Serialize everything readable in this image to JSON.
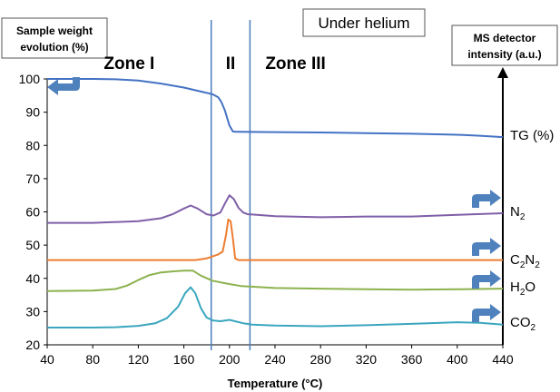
{
  "chart_data": {
    "type": "line",
    "title": "Under helium",
    "xlabel": "Temperature (°C)",
    "ylabel_left": "Sample weight evolution (%)",
    "ylabel_right": "MS detector intensity (a.u.)",
    "xlim": [
      40,
      440
    ],
    "ylim": [
      20,
      100
    ],
    "x_ticks": [
      "40",
      "80",
      "120",
      "160",
      "200",
      "240",
      "280",
      "320",
      "360",
      "400",
      "440"
    ],
    "y_ticks": [
      "20",
      "30",
      "40",
      "50",
      "60",
      "70",
      "80",
      "90",
      "100"
    ],
    "grid": false,
    "zones": [
      {
        "label": "Zone I",
        "x_center": 112
      },
      {
        "label": "II",
        "x_center": 201
      },
      {
        "label": "Zone III",
        "x_center": 258
      }
    ],
    "zone_boundaries": [
      184,
      218
    ],
    "series": [
      {
        "name": "TG (%)",
        "color": "#4472C4",
        "x": [
          40,
          80,
          100,
          120,
          140,
          160,
          175,
          185,
          190,
          193,
          196,
          200,
          203,
          206,
          210,
          240,
          280,
          320,
          360,
          400,
          420,
          440
        ],
        "y": [
          100,
          100,
          99.9,
          99.5,
          98.6,
          97.4,
          96.2,
          95.4,
          94.5,
          93,
          90.5,
          86,
          84.2,
          84.1,
          84.1,
          84,
          83.9,
          83.7,
          83.5,
          83.2,
          82.9,
          82.5
        ]
      },
      {
        "name": "N2",
        "color": "#7F5FA8",
        "x": [
          40,
          80,
          120,
          140,
          150,
          160,
          166,
          172,
          180,
          186,
          192,
          196,
          200,
          204,
          208,
          212,
          216,
          220,
          240,
          280,
          320,
          360,
          400,
          440
        ],
        "y": [
          56.7,
          56.7,
          57.2,
          58.1,
          59.3,
          61,
          61.9,
          61,
          59.3,
          58.9,
          59.8,
          62.5,
          65,
          63.8,
          61.2,
          59.8,
          59.3,
          59.2,
          58.7,
          58.4,
          58.6,
          58.6,
          59.1,
          59.6
        ]
      },
      {
        "name": "C2N2",
        "color": "#ED7D31",
        "x": [
          40,
          120,
          170,
          180,
          190,
          194,
          197,
          199,
          201,
          203,
          205,
          208,
          212,
          220,
          280,
          360,
          440
        ],
        "y": [
          45.5,
          45.5,
          45.5,
          46,
          47.2,
          48,
          53,
          57.7,
          57.2,
          52,
          46,
          45.5,
          45.5,
          45.5,
          45.5,
          45.5,
          45.5
        ]
      },
      {
        "name": "H2O",
        "color": "#8CB24E",
        "x": [
          40,
          80,
          100,
          110,
          120,
          130,
          140,
          150,
          160,
          168,
          175,
          185,
          195,
          210,
          240,
          280,
          320,
          360,
          400,
          440
        ],
        "y": [
          36.2,
          36.3,
          36.8,
          37.8,
          39.5,
          41,
          41.8,
          42.1,
          42.3,
          42.3,
          40.8,
          39.3,
          38.6,
          37.7,
          37.1,
          36.9,
          36.7,
          36.6,
          36.7,
          36.9
        ]
      },
      {
        "name": "CO2",
        "color": "#3AA6BE",
        "x": [
          40,
          80,
          100,
          120,
          135,
          145,
          155,
          161,
          166,
          170,
          175,
          180,
          186,
          192,
          196,
          200,
          206,
          212,
          220,
          240,
          280,
          320,
          360,
          400,
          420,
          440
        ],
        "y": [
          25.2,
          25.2,
          25.3,
          25.7,
          26.5,
          28,
          31.5,
          35.5,
          37.3,
          35.5,
          31,
          28.2,
          27.3,
          27.1,
          27.3,
          27.5,
          27,
          26.5,
          26.1,
          25.8,
          25.6,
          25.9,
          26.3,
          26.8,
          26.6,
          26.1
        ]
      }
    ]
  },
  "series_labels": [
    {
      "base": "TG (%)",
      "sub": "",
      "tail": ""
    },
    {
      "base": "N",
      "sub": "2",
      "tail": ""
    },
    {
      "base": "C",
      "sub": "2",
      "tail": "N"
    },
    {
      "base": "H",
      "sub": "2",
      "tail": "O"
    },
    {
      "base": "CO",
      "sub": "2",
      "tail": ""
    }
  ],
  "c2n2_label_suffix_sub": "2",
  "colors": {
    "axis": "#000000",
    "zone_line": "#4A7EBB",
    "arrow": "#4F81BD",
    "title_box_border": "#555555"
  }
}
